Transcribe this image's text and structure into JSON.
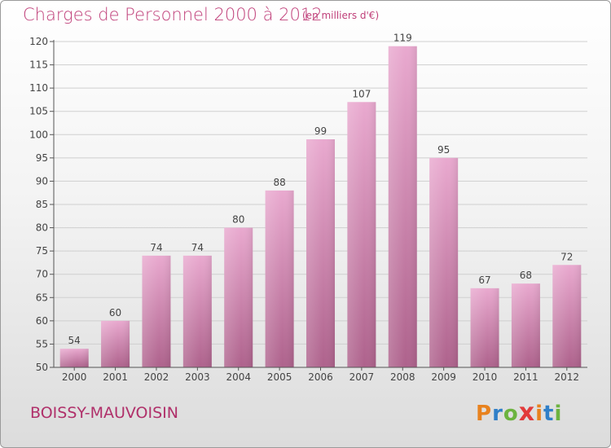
{
  "title": "Charges de Personnel 2000 à 2012",
  "subtitle": "(en milliers d'€)",
  "town": "BOISSY-MAUVOISIN",
  "logo": "Proxiti",
  "colors": {
    "title": "#c0407a",
    "bar_top": "#e8a6cc",
    "bar_bottom": "#b06690",
    "grid": "#cfcfcf",
    "axis": "#555555"
  },
  "chart_data": {
    "type": "bar",
    "categories": [
      "2000",
      "2001",
      "2002",
      "2003",
      "2004",
      "2005",
      "2006",
      "2007",
      "2008",
      "2009",
      "2010",
      "2011",
      "2012"
    ],
    "values": [
      54,
      60,
      74,
      74,
      80,
      88,
      99,
      107,
      119,
      95,
      67,
      68,
      72
    ],
    "ylim": [
      50,
      120
    ],
    "yticks": [
      50,
      55,
      60,
      65,
      70,
      75,
      80,
      85,
      90,
      95,
      100,
      105,
      110,
      115,
      120
    ],
    "grid": true,
    "xlabel": "",
    "ylabel": ""
  }
}
